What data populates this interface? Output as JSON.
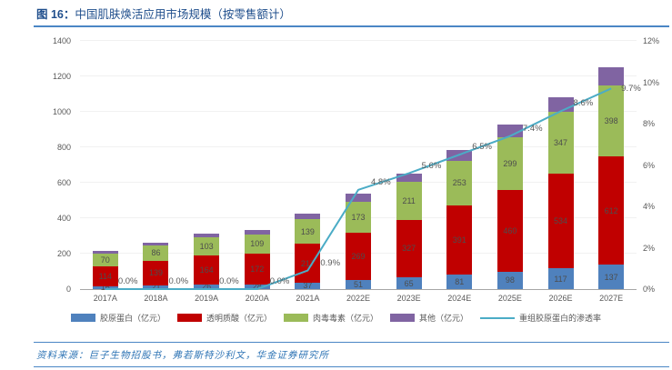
{
  "header": {
    "figure_label": "图 16：",
    "title": "中国肌肤焕活应用市场规模（按零售额计）"
  },
  "footer": {
    "source": "资料来源：巨子生物招股书，弗若斯特沙利文，华金证券研究所"
  },
  "chart_data": {
    "type": "bar",
    "subtype": "stacked-bars-with-line-overlay",
    "title": "中国肌肤焕活应用市场规模（按零售额计）",
    "categories": [
      "2017A",
      "2018A",
      "2019A",
      "2020A",
      "2021A",
      "2022E",
      "2023E",
      "2024E",
      "2025E",
      "2026E",
      "2027E"
    ],
    "series": [
      {
        "name": "胶原蛋白（亿元）",
        "color": "#4F81BD",
        "show_labels": true,
        "values": [
          16,
          21,
          26,
          28,
          37,
          51,
          65,
          81,
          98,
          117,
          137
        ]
      },
      {
        "name": "透明质酸（亿元）",
        "color": "#C00000",
        "show_labels": true,
        "values": [
          114,
          139,
          164,
          172,
          217,
          269,
          327,
          391,
          460,
          534,
          612
        ]
      },
      {
        "name": "肉毒毒素（亿元）",
        "color": "#9BBB59",
        "show_labels": true,
        "values": [
          70,
          86,
          103,
          109,
          139,
          173,
          211,
          253,
          299,
          347,
          398
        ]
      },
      {
        "name": "其他（亿元）",
        "color": "#8064A2",
        "show_labels": false,
        "estimated": true,
        "values": [
          15,
          18,
          22,
          26,
          32,
          44,
          50,
          58,
          70,
          85,
          105
        ]
      }
    ],
    "line_series": {
      "name": "重组胶原蛋白的渗透率",
      "color": "#4BACC6",
      "axis": "right",
      "values": [
        0.0,
        0.0,
        0.0,
        0.0,
        0.9,
        4.8,
        5.6,
        6.5,
        7.4,
        8.6,
        9.7
      ],
      "labels": [
        "0.0%",
        "0.0%",
        "0.0%",
        "0.0%",
        "0.9%",
        "4.8%",
        "5.6%",
        "6.5%",
        "7.4%",
        "8.6%",
        "9.7%"
      ]
    },
    "left_axis": {
      "min": 0,
      "max": 1400,
      "step": 200,
      "tick_labels": [
        "0",
        "200",
        "400",
        "600",
        "800",
        "1000",
        "1200",
        "1400"
      ]
    },
    "right_axis": {
      "min": 0,
      "max": 12,
      "step": 2,
      "tick_labels": [
        "0%",
        "2%",
        "4%",
        "6%",
        "8%",
        "10%",
        "12%"
      ]
    },
    "legend_position": "bottom",
    "grid": false
  }
}
